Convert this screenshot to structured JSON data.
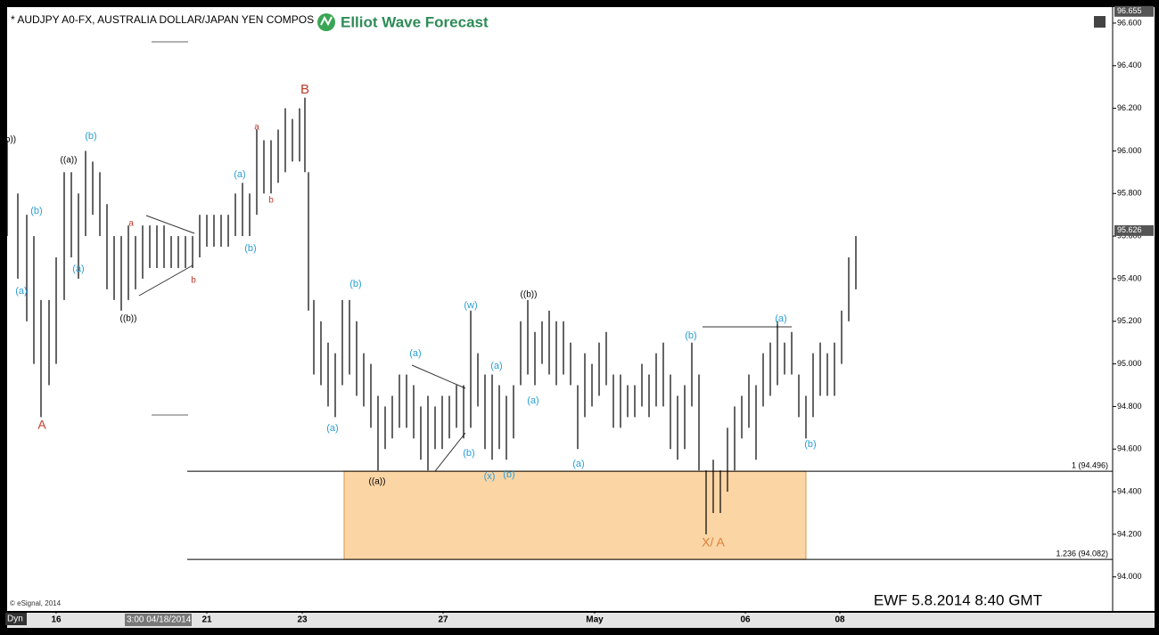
{
  "chart_data": {
    "type": "ohlc",
    "title": "* AUDJPY A0-FX, AUSTRALIA DOLLAR/JAPAN YEN COMPOS",
    "logo_text": "Elliot Wave Forecast",
    "bar_color": "#000000",
    "x": [
      8,
      20,
      30,
      38,
      46,
      55,
      63,
      72,
      80,
      88,
      96,
      104,
      112,
      120,
      128,
      136,
      144,
      152,
      160,
      168,
      176,
      184,
      192,
      200,
      208,
      216,
      224,
      232,
      240,
      248,
      256,
      264,
      272,
      280,
      288,
      296,
      304,
      312,
      320,
      328,
      336,
      342,
      346,
      352,
      360,
      368,
      376,
      384,
      392,
      400,
      408,
      416,
      424,
      432,
      440,
      448,
      456,
      464,
      472,
      480,
      488,
      496,
      504,
      512,
      520,
      528,
      536,
      544,
      552,
      560,
      568,
      576,
      584,
      592,
      600,
      608,
      616,
      624,
      632,
      640,
      648,
      656,
      664,
      672,
      680,
      688,
      696,
      704,
      712,
      720,
      728,
      736,
      744,
      752,
      760,
      768,
      776,
      784,
      792,
      800,
      808,
      816,
      824,
      832,
      840,
      848,
      856,
      864,
      872,
      880,
      888,
      896,
      904,
      912,
      920,
      928,
      936,
      944,
      952,
      960
    ],
    "high": [
      96.05,
      95.8,
      95.7,
      95.6,
      95.3,
      95.3,
      95.5,
      95.9,
      95.9,
      95.8,
      96.0,
      95.95,
      95.9,
      95.75,
      95.6,
      95.6,
      95.65,
      95.6,
      95.65,
      95.65,
      95.65,
      95.65,
      95.6,
      95.6,
      95.6,
      95.6,
      95.7,
      95.7,
      95.7,
      95.7,
      95.7,
      95.8,
      95.85,
      95.8,
      96.1,
      96.05,
      96.05,
      96.1,
      96.2,
      96.15,
      96.2,
      96.25,
      95.9,
      95.3,
      95.2,
      95.1,
      95.05,
      95.3,
      95.3,
      95.2,
      95.05,
      95.0,
      94.85,
      94.8,
      94.85,
      94.95,
      94.95,
      94.9,
      94.8,
      94.85,
      94.8,
      94.85,
      94.85,
      94.9,
      94.9,
      95.25,
      95.05,
      94.95,
      94.95,
      94.9,
      94.85,
      94.9,
      95.2,
      95.3,
      95.15,
      95.2,
      95.25,
      95.2,
      95.2,
      95.1,
      94.9,
      95.05,
      95.0,
      95.1,
      95.15,
      94.95,
      94.95,
      94.9,
      94.9,
      95.0,
      94.95,
      95.05,
      95.1,
      94.95,
      94.85,
      94.9,
      95.1,
      94.95,
      94.5,
      94.55,
      94.5,
      94.7,
      94.8,
      94.85,
      94.95,
      94.9,
      95.05,
      95.1,
      95.2,
      95.1,
      95.15,
      94.95,
      94.85,
      95.05,
      95.1,
      95.05,
      95.1,
      95.25,
      95.5,
      95.6
    ],
    "low": [
      95.6,
      95.4,
      95.2,
      95.0,
      94.75,
      94.9,
      95.0,
      95.3,
      95.5,
      95.4,
      95.6,
      95.7,
      95.6,
      95.35,
      95.3,
      95.25,
      95.3,
      95.35,
      95.4,
      95.45,
      95.45,
      95.45,
      95.45,
      95.45,
      95.45,
      95.45,
      95.5,
      95.55,
      95.55,
      95.55,
      95.55,
      95.6,
      95.6,
      95.6,
      95.7,
      95.8,
      95.8,
      95.85,
      95.9,
      95.95,
      95.95,
      95.9,
      95.25,
      94.95,
      94.9,
      94.8,
      94.75,
      94.9,
      94.95,
      94.85,
      94.8,
      94.7,
      94.5,
      94.6,
      94.65,
      94.7,
      94.7,
      94.65,
      94.55,
      94.5,
      94.6,
      94.6,
      94.65,
      94.7,
      94.65,
      94.7,
      94.8,
      94.6,
      94.55,
      94.6,
      94.55,
      94.65,
      94.9,
      94.95,
      94.9,
      95.0,
      94.95,
      94.9,
      94.95,
      94.9,
      94.6,
      94.75,
      94.8,
      94.85,
      94.9,
      94.7,
      94.7,
      94.75,
      94.75,
      94.8,
      94.75,
      94.8,
      94.8,
      94.6,
      94.55,
      94.6,
      94.8,
      94.5,
      94.2,
      94.3,
      94.3,
      94.4,
      94.5,
      94.65,
      94.7,
      94.55,
      94.8,
      94.85,
      94.9,
      94.95,
      94.95,
      94.75,
      94.65,
      94.75,
      94.85,
      94.85,
      94.85,
      95.0,
      95.2,
      95.35
    ],
    "xlim": [
      8,
      1248
    ],
    "xticks": [
      {
        "value": 63,
        "label": "16"
      },
      {
        "value": 232,
        "label": "21"
      },
      {
        "value": 339,
        "label": "23"
      },
      {
        "value": 497,
        "label": "27"
      },
      {
        "value": 667,
        "label": "May"
      },
      {
        "value": 836,
        "label": "06"
      },
      {
        "value": 942,
        "label": "08"
      }
    ],
    "ylim": [
      93.84,
      96.675
    ],
    "yticks": [
      {
        "value": 94.0,
        "label": "94.000"
      },
      {
        "value": 94.2,
        "label": "94.200"
      },
      {
        "value": 94.4,
        "label": "94.400"
      },
      {
        "value": 94.6,
        "label": "94.600"
      },
      {
        "value": 94.8,
        "label": "94.800"
      },
      {
        "value": 95.0,
        "label": "95.000"
      },
      {
        "value": 95.2,
        "label": "95.200"
      },
      {
        "value": 95.4,
        "label": "95.400"
      },
      {
        "value": 95.6,
        "label": "95.600"
      },
      {
        "value": 95.8,
        "label": "95.800"
      },
      {
        "value": 96.0,
        "label": "96.000"
      },
      {
        "value": 96.2,
        "label": "96.200"
      },
      {
        "value": 96.4,
        "label": "96.400"
      },
      {
        "value": 96.6,
        "label": "96.600"
      }
    ],
    "price_markers": [
      {
        "value": 96.655,
        "label": "96.655"
      },
      {
        "value": 95.626,
        "label": "95.626"
      }
    ],
    "fib_levels": [
      {
        "value": 94.496,
        "label": "1 (94.496)"
      },
      {
        "value": 94.082,
        "label": "1.236 (94.082)"
      }
    ],
    "wave_labels": [
      {
        "text": "B",
        "color": "#c0392b"
      },
      {
        "text": "A",
        "color": "#c0392b"
      },
      {
        "text": "X/ A",
        "color": "#d9803a"
      },
      {
        "text": "((a))",
        "color": "#000"
      },
      {
        "text": "(b)",
        "color": "#2a9fd6"
      },
      {
        "text": "(b)",
        "color": "#2a9fd6"
      },
      {
        "text": "(a)",
        "color": "#2a9fd6"
      },
      {
        "text": "(a)",
        "color": "#2a9fd6"
      },
      {
        "text": "a",
        "color": "#c0392b"
      },
      {
        "text": "((b))",
        "color": "#000"
      },
      {
        "text": "b",
        "color": "#c0392b"
      },
      {
        "text": "(a)",
        "color": "#2a9fd6"
      },
      {
        "text": "(b)",
        "color": "#2a9fd6"
      },
      {
        "text": "a",
        "color": "#c0392b"
      },
      {
        "text": "b",
        "color": "#c0392b"
      },
      {
        "text": "(b)",
        "color": "#2a9fd6"
      },
      {
        "text": "(a)",
        "color": "#2a9fd6"
      },
      {
        "text": "((a))",
        "color": "#000"
      },
      {
        "text": "(a)",
        "color": "#2a9fd6"
      },
      {
        "text": "(b)",
        "color": "#2a9fd6"
      },
      {
        "text": "(w)",
        "color": "#2a9fd6"
      },
      {
        "text": "(x)",
        "color": "#2a9fd6"
      },
      {
        "text": "(a)",
        "color": "#2a9fd6"
      },
      {
        "text": "(b)",
        "color": "#2a9fd6"
      },
      {
        "text": "((b))",
        "color": "#000"
      },
      {
        "text": "(a)",
        "color": "#2a9fd6"
      },
      {
        "text": "(a)",
        "color": "#2a9fd6"
      },
      {
        "text": "(b)",
        "color": "#2a9fd6"
      },
      {
        "text": "(a)",
        "color": "#2a9fd6"
      },
      {
        "text": "(b)",
        "color": "#2a9fd6"
      },
      {
        "text": "b))",
        "color": "#000"
      }
    ],
    "cursor_label": "3:00 04/18/2014",
    "interval_label": "Dyn",
    "copyright": "© eSignal, 2014",
    "stamp": "EWF 5.8.2014 8:40 GMT"
  }
}
